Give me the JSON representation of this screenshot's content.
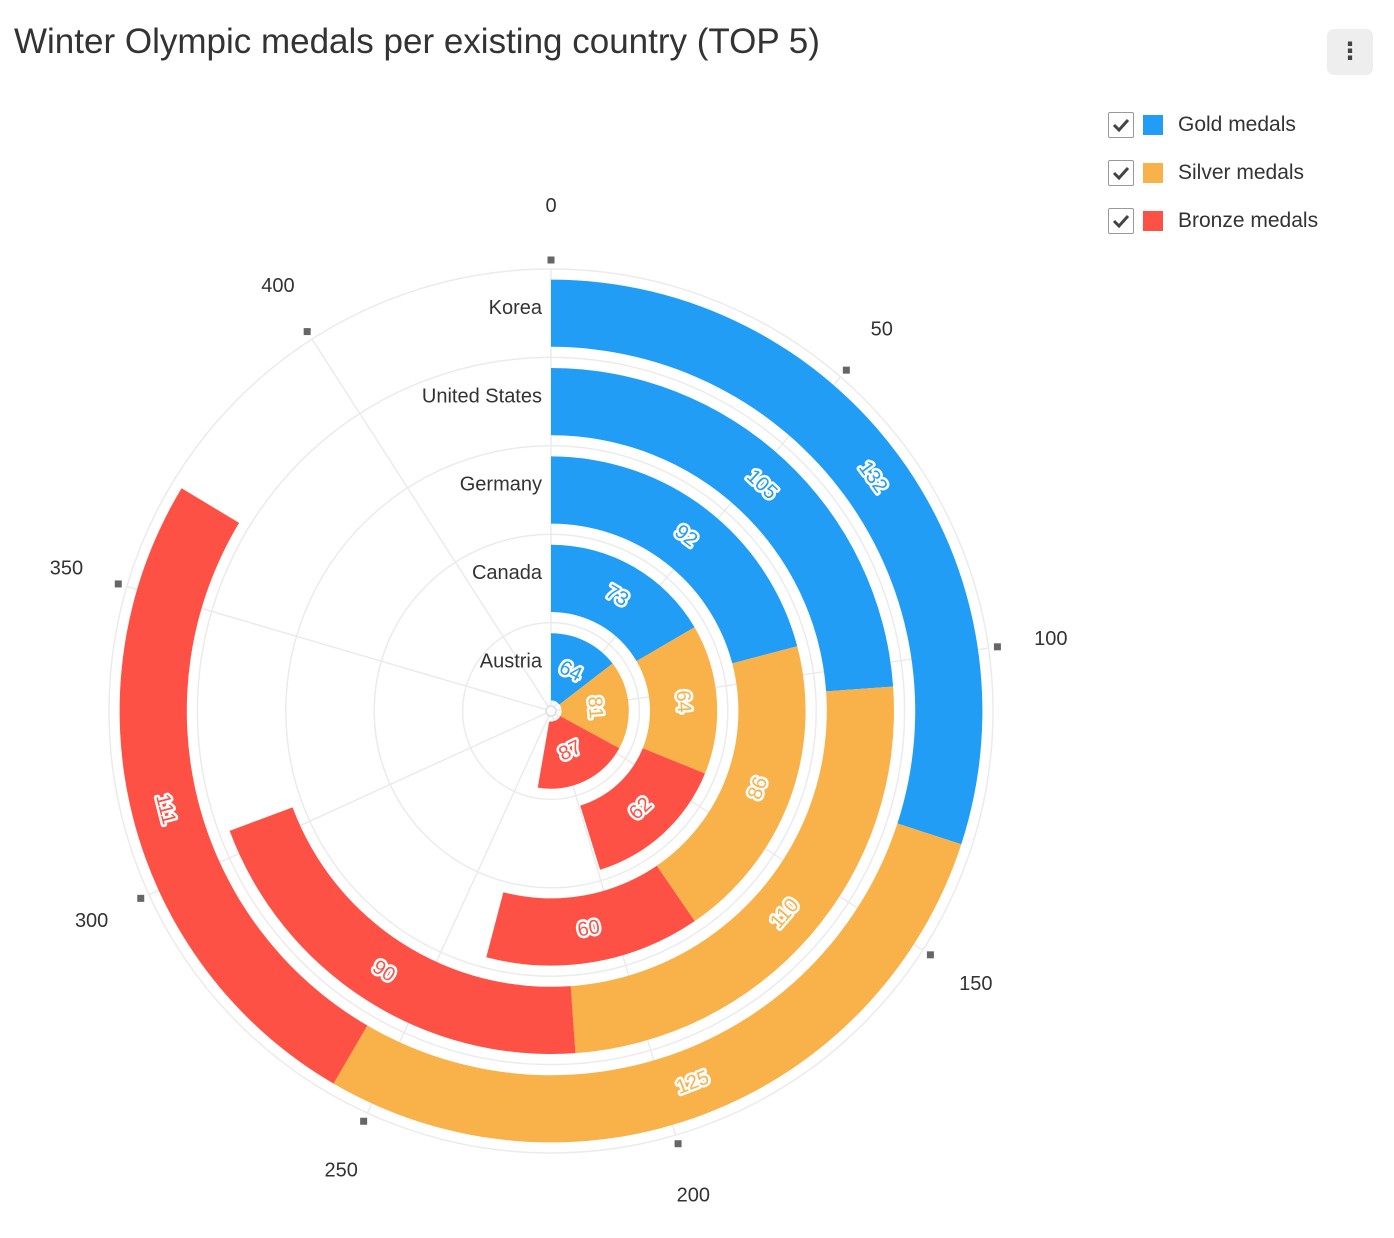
{
  "title": "Winter Olympic medals per existing country (TOP 5)",
  "menu": {
    "icon": "more-vert-icon",
    "glyph": "⋮"
  },
  "legend": [
    {
      "label": "Gold medals",
      "color": "#229df5",
      "checked": true
    },
    {
      "label": "Silver medals",
      "color": "#f9b14a",
      "checked": true
    },
    {
      "label": "Bronze medals",
      "color": "#fe5146",
      "checked": true
    }
  ],
  "chart_data": {
    "type": "radial-stacked-bar",
    "title": "Winter Olympic medals per existing country (TOP 5)",
    "categories": [
      "Korea",
      "United States",
      "Germany",
      "Canada",
      "Austria"
    ],
    "series": [
      {
        "name": "Gold medals",
        "color": "#229df5",
        "values": [
          132,
          105,
          92,
          73,
          64
        ]
      },
      {
        "name": "Silver medals",
        "color": "#f9b14a",
        "values": [
          125,
          110,
          86,
          64,
          81
        ]
      },
      {
        "name": "Bronze medals",
        "color": "#fe5146",
        "values": [
          111,
          90,
          60,
          62,
          87
        ]
      }
    ],
    "angular_axis": {
      "min": 0,
      "max": 440,
      "tick_values": [
        0,
        50,
        100,
        150,
        200,
        250,
        300,
        350,
        400
      ],
      "tick_labels": [
        "0",
        "50",
        "100",
        "150",
        "200",
        "250",
        "300",
        "350",
        "400"
      ]
    },
    "grid": true,
    "legend_position": "top-right"
  }
}
